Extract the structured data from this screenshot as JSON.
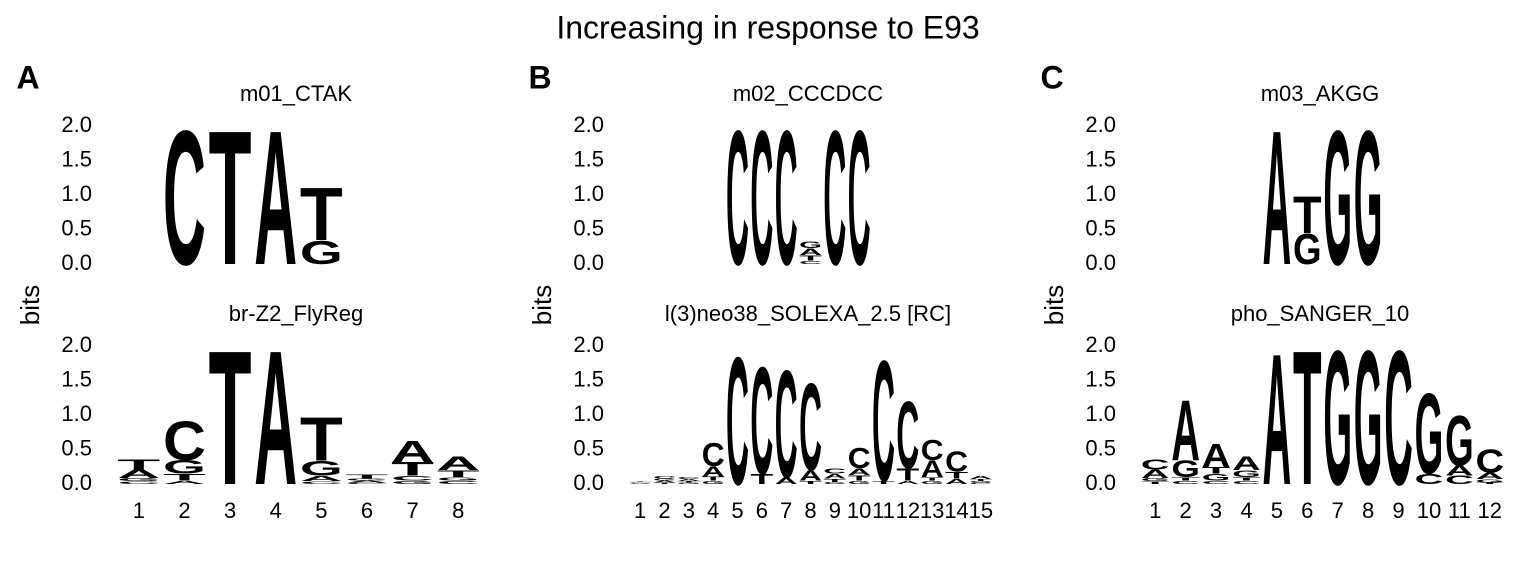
{
  "title": "Increasing in response to E93",
  "panels": [
    {
      "label": "A",
      "ylabel": "bits"
    },
    {
      "label": "B",
      "ylabel": "bits"
    },
    {
      "label": "C",
      "ylabel": "bits"
    }
  ],
  "chart_data": [
    {
      "type": "logo",
      "title": "m01_CTAK",
      "categories": [
        null,
        null,
        null,
        null,
        null,
        null,
        null,
        null
      ],
      "ylim": [
        0,
        2
      ],
      "yticks": [
        {
          "value": 0,
          "label": "0.0"
        },
        {
          "value": 0.5,
          "label": "0.5"
        },
        {
          "value": 1,
          "label": "1.0"
        },
        {
          "value": 1.5,
          "label": "1.5"
        },
        {
          "value": 2,
          "label": "2.0"
        }
      ],
      "series": [
        {
          "name": "A",
          "color": "#109648",
          "values": [
            null,
            null,
            null,
            2.0,
            null,
            null,
            null,
            null
          ]
        },
        {
          "name": "C",
          "color": "#255C99",
          "values": [
            null,
            2.0,
            null,
            null,
            null,
            null,
            null,
            null
          ]
        },
        {
          "name": "G",
          "color": "#F7B32B",
          "values": [
            null,
            null,
            null,
            null,
            0.35,
            null,
            null,
            null
          ]
        },
        {
          "name": "T",
          "color": "#D62839",
          "values": [
            null,
            null,
            2.0,
            null,
            0.78,
            null,
            null,
            null
          ]
        }
      ]
    },
    {
      "type": "logo",
      "title": "br-Z2_FlyReg",
      "categories": [
        "1",
        "2",
        "3",
        "4",
        "5",
        "6",
        "7",
        "8"
      ],
      "ylim": [
        0,
        2
      ],
      "yticks": [
        {
          "value": 0,
          "label": "0.0"
        },
        {
          "value": 0.5,
          "label": "0.5"
        },
        {
          "value": 1,
          "label": "1.0"
        },
        {
          "value": 1.5,
          "label": "1.5"
        },
        {
          "value": 2,
          "label": "2.0"
        }
      ],
      "series": [
        {
          "name": "A",
          "color": "#109648",
          "values": [
            0.12,
            0.05,
            null,
            2.0,
            0.08,
            0.03,
            0.32,
            0.2
          ]
        },
        {
          "name": "C",
          "color": "#255C99",
          "values": [
            0.04,
            0.58,
            null,
            null,
            0.04,
            0.02,
            0.07,
            0.05
          ]
        },
        {
          "name": "G",
          "color": "#F7B32B",
          "values": [
            0.05,
            0.2,
            null,
            null,
            0.22,
            0.03,
            0.05,
            0.05
          ]
        },
        {
          "name": "T",
          "color": "#D62839",
          "values": [
            0.15,
            0.1,
            2.0,
            null,
            0.65,
            0.06,
            0.2,
            0.1
          ]
        }
      ]
    },
    {
      "type": "logo",
      "title": "m02_CCCDCC",
      "categories": [
        null,
        null,
        null,
        null,
        null,
        null,
        null,
        null,
        null,
        null,
        null,
        null,
        null,
        null,
        null
      ],
      "ylim": [
        0,
        2
      ],
      "yticks": [
        {
          "value": 0,
          "label": "0.0"
        },
        {
          "value": 0.5,
          "label": "0.5"
        },
        {
          "value": 1,
          "label": "1.0"
        },
        {
          "value": 1.5,
          "label": "1.5"
        },
        {
          "value": 2,
          "label": "2.0"
        }
      ],
      "series": [
        {
          "name": "A",
          "color": "#109648",
          "values": [
            null,
            null,
            null,
            null,
            null,
            null,
            null,
            0.1,
            null,
            null,
            null,
            null,
            null,
            null,
            null
          ]
        },
        {
          "name": "C",
          "color": "#255C99",
          "values": [
            null,
            null,
            null,
            null,
            2.0,
            2.0,
            2.0,
            0.05,
            2.0,
            2.0,
            null,
            null,
            null,
            null,
            null
          ]
        },
        {
          "name": "G",
          "color": "#F7B32B",
          "values": [
            null,
            null,
            null,
            null,
            null,
            null,
            null,
            0.1,
            null,
            null,
            null,
            null,
            null,
            null,
            null
          ]
        },
        {
          "name": "T",
          "color": "#D62839",
          "values": [
            null,
            null,
            null,
            null,
            null,
            null,
            null,
            0.08,
            null,
            null,
            null,
            null,
            null,
            null,
            null
          ]
        }
      ]
    },
    {
      "type": "logo",
      "title": "l(3)neo38_SOLEXA_2.5 [RC]",
      "categories": [
        "1",
        "2",
        "3",
        "4",
        "5",
        "6",
        "7",
        "8",
        "9",
        "10",
        "11",
        "12",
        "13",
        "14",
        "15"
      ],
      "ylim": [
        0,
        2
      ],
      "yticks": [
        {
          "value": 0,
          "label": "0.0"
        },
        {
          "value": 0.5,
          "label": "0.5"
        },
        {
          "value": 1,
          "label": "1.0"
        },
        {
          "value": 1.5,
          "label": "1.5"
        },
        {
          "value": 2,
          "label": "2.0"
        }
      ],
      "series": [
        {
          "name": "A",
          "color": "#109648",
          "values": [
            0.01,
            0.03,
            0.03,
            0.15,
            null,
            null,
            0.1,
            0.15,
            0.07,
            0.1,
            null,
            0.05,
            0.25,
            0.08,
            0.05
          ]
        },
        {
          "name": "C",
          "color": "#255C99",
          "values": [
            0.01,
            0.04,
            0.03,
            0.35,
            1.9,
            1.6,
            1.6,
            1.3,
            0.08,
            0.3,
            1.8,
            1.0,
            0.3,
            0.3,
            0.02
          ]
        },
        {
          "name": "G",
          "color": "#F7B32B",
          "values": [
            0.01,
            0.03,
            0.02,
            0.05,
            null,
            null,
            null,
            null,
            0.03,
            0.05,
            null,
            null,
            0.05,
            null,
            0.02
          ]
        },
        {
          "name": "T",
          "color": "#D62839",
          "values": [
            0.01,
            0.02,
            0.02,
            0.06,
            null,
            0.15,
            null,
            0.05,
            0.05,
            0.08,
            0.05,
            0.18,
            0.05,
            0.1,
            0.03
          ]
        }
      ]
    },
    {
      "type": "logo",
      "title": "m03_AKGG",
      "categories": [
        null,
        null,
        null,
        null,
        null,
        null,
        null,
        null,
        null,
        null,
        null,
        null
      ],
      "ylim": [
        0,
        2
      ],
      "yticks": [
        {
          "value": 0,
          "label": "0.0"
        },
        {
          "value": 0.5,
          "label": "0.5"
        },
        {
          "value": 1,
          "label": "1.0"
        },
        {
          "value": 1.5,
          "label": "1.5"
        },
        {
          "value": 2,
          "label": "2.0"
        }
      ],
      "series": [
        {
          "name": "A",
          "color": "#109648",
          "values": [
            null,
            null,
            null,
            null,
            2.0,
            null,
            null,
            null,
            null,
            null,
            null,
            null
          ]
        },
        {
          "name": "C",
          "color": "#255C99",
          "values": [
            null,
            null,
            null,
            null,
            null,
            null,
            null,
            null,
            null,
            null,
            null,
            null
          ]
        },
        {
          "name": "G",
          "color": "#F7B32B",
          "values": [
            null,
            null,
            null,
            null,
            null,
            0.45,
            2.0,
            2.0,
            null,
            null,
            null,
            null
          ]
        },
        {
          "name": "T",
          "color": "#D62839",
          "values": [
            null,
            null,
            null,
            null,
            null,
            0.55,
            null,
            null,
            null,
            null,
            null,
            null
          ]
        }
      ]
    },
    {
      "type": "logo",
      "title": "pho_SANGER_10",
      "categories": [
        "1",
        "2",
        "3",
        "4",
        "5",
        "6",
        "7",
        "8",
        "9",
        "10",
        "11",
        "12"
      ],
      "ylim": [
        0,
        2
      ],
      "yticks": [
        {
          "value": 0,
          "label": "0.0"
        },
        {
          "value": 0.5,
          "label": "0.5"
        },
        {
          "value": 1,
          "label": "1.0"
        },
        {
          "value": 1.5,
          "label": "1.5"
        },
        {
          "value": 2,
          "label": "2.0"
        }
      ],
      "series": [
        {
          "name": "A",
          "color": "#109648",
          "values": [
            0.12,
            0.9,
            0.35,
            0.2,
            1.95,
            null,
            null,
            null,
            null,
            null,
            0.15,
            0.1
          ]
        },
        {
          "name": "C",
          "color": "#255C99",
          "values": [
            0.15,
            0.05,
            0.05,
            0.05,
            null,
            null,
            null,
            null,
            2.0,
            0.15,
            0.12,
            0.35
          ]
        },
        {
          "name": "G",
          "color": "#F7B32B",
          "values": [
            0.05,
            0.25,
            0.1,
            0.1,
            null,
            null,
            2.0,
            2.0,
            null,
            1.2,
            0.75,
            0.05
          ]
        },
        {
          "name": "T",
          "color": "#D62839",
          "values": [
            0.04,
            0.05,
            0.1,
            0.05,
            null,
            2.0,
            null,
            null,
            null,
            null,
            null,
            0.02
          ]
        }
      ]
    }
  ]
}
